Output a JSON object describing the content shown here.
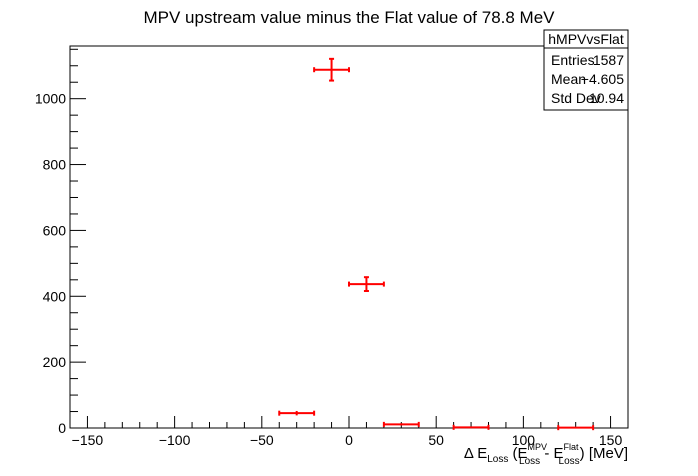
{
  "chart_data": {
    "type": "scatter",
    "title": "MPV upstream value minus the Flat value of 78.8 MeV",
    "xlabel": {
      "prefix": "Δ E",
      "sub1": "Loss",
      "open": " (E",
      "sup2": "MPV",
      "sub2": "Loss",
      "mid": " - E",
      "sup3": "Flat",
      "sub3": "Loss",
      "close": ") [MeV]"
    },
    "ylabel": "",
    "xlim": [
      -160,
      160
    ],
    "ylim": [
      0,
      1160
    ],
    "x_ticks": [
      -150,
      -100,
      -50,
      0,
      50,
      100,
      150
    ],
    "y_ticks": [
      0,
      200,
      400,
      600,
      800,
      1000
    ],
    "x_minor_step": 10,
    "y_minor_step": 50,
    "grid": false,
    "marker_color": "#ff0000",
    "points": [
      {
        "x": -30,
        "xerr": 10,
        "y": 45,
        "yerr": 6.7
      },
      {
        "x": -10,
        "xerr": 10,
        "y": 1088,
        "yerr": 33
      },
      {
        "x": 10,
        "xerr": 10,
        "y": 437,
        "yerr": 21
      },
      {
        "x": 30,
        "xerr": 10,
        "y": 11,
        "yerr": 3.3
      },
      {
        "x": 70,
        "xerr": 10,
        "y": 2,
        "yerr": 1.4
      },
      {
        "x": 130,
        "xerr": 10,
        "y": 1,
        "yerr": 1
      }
    ],
    "stats_box": {
      "name": "hMPVvsFlat",
      "rows": [
        {
          "label": "Entries",
          "value": "1587"
        },
        {
          "label": "Mean",
          "value": "−4.605"
        },
        {
          "label": "Std Dev",
          "value": "10.94"
        }
      ]
    }
  }
}
